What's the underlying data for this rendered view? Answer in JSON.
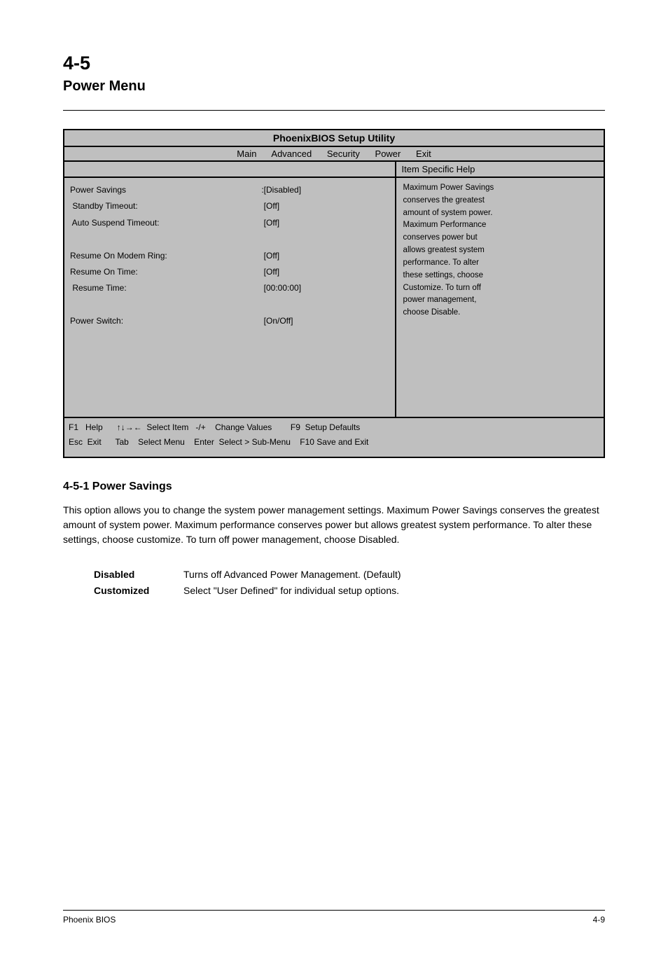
{
  "page": {
    "section_number": "4-5",
    "section_title": "Power Menu",
    "bottom_left": "Phoenix BIOS",
    "bottom_right": "4-9"
  },
  "bios": {
    "title": "PhoenixBIOS Setup Utility",
    "nav": {
      "items": "Main      Advanced      Security      Power      Exit"
    },
    "subheader": {
      "left": "",
      "right": "Item Specific Help"
    },
    "body": {
      "settings": [
        {
          "label": "Power Savings",
          "value": ":[Disabled]"
        },
        {
          "label": " Standby Timeout:",
          "value": " [Off]"
        },
        {
          "label": " Auto Suspend Timeout:",
          "value": " [Off]"
        },
        {
          "label": "",
          "value": ""
        },
        {
          "label": "Resume On Modem Ring:",
          "value": " [Off]"
        },
        {
          "label": "Resume On Time:",
          "value": " [Off]"
        },
        {
          "label": " Resume Time:",
          "value": " [00:00:00]"
        },
        {
          "label": "",
          "value": ""
        },
        {
          "label": "Power Switch:",
          "value": " [On/Off]"
        },
        {
          "label": "",
          "value": ""
        },
        {
          "label": "",
          "value": ""
        },
        {
          "label": "",
          "value": ""
        },
        {
          "label": "",
          "value": ""
        },
        {
          "label": "",
          "value": ""
        }
      ],
      "help_lines": [
        "Maximum Power Savings",
        "conserves the greatest",
        "amount of system power.",
        "Maximum Performance",
        "conserves power but",
        "allows greatest system",
        "performance. To alter",
        "these settings, choose",
        "Customize. To turn off",
        "power management,",
        "choose Disable."
      ]
    },
    "footer": {
      "line1_prefix": "F1   Help      ",
      "arrows": "↑↓→←",
      "line1_suffix": "  Select Item   -/+    Change Values        F9  Setup Defaults",
      "line2": "Esc  Exit      Tab    Select Menu    Enter  Select > Sub-Menu    F10 Save and Exit"
    }
  },
  "subsection": {
    "title": "4-5-1 Power Savings",
    "paragraph": "This option allows you to change the system power management settings. Maximum Power Savings conserves the greatest amount of system power. Maximum performance conserves power but allows greatest system performance. To alter these settings, choose customize. To turn off power management, choose Disabled.",
    "options": [
      {
        "label": "Disabled",
        "desc": "Turns off Advanced Power Management. (Default)"
      },
      {
        "label": "Customized",
        "desc": "Select \"User Defined\" for individual setup options."
      }
    ]
  },
  "colors": {
    "bios_background": "#bfbfbf",
    "page_background": "#ffffff",
    "text": "#000000",
    "border": "#000000"
  }
}
